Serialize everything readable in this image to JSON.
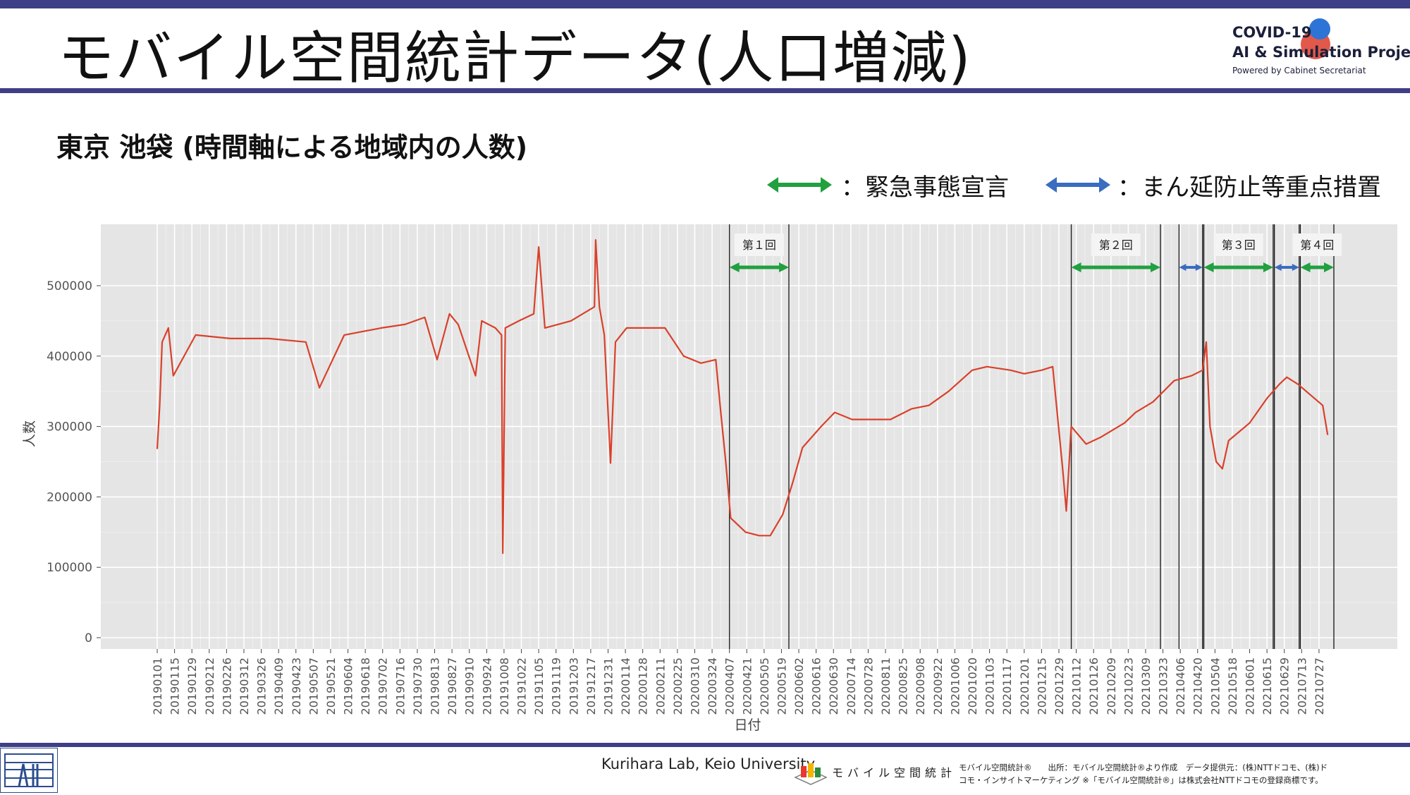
{
  "header": {
    "title": "モバイル空間統計データ(人口増減)",
    "logo_line1": "COVID-19",
    "logo_line2": "AI & Simulation Project",
    "logo_line3": "Powered by Cabinet Secretariat"
  },
  "subtitle": "東京 池袋 (時間軸による地域内の人数)",
  "legend": {
    "emergency_label": "：緊急事態宣言",
    "emergency_color": "#21a040",
    "priority_label": "：まん延防止等重点措置",
    "priority_color": "#3a6cc0"
  },
  "footer": {
    "credit": "Kurihara Lab, Keio University",
    "mobile_logo_text": "モバイル空間統計",
    "source_line1": "モバイル空間統計®　　出所：モバイル空間統計®より作成　データ提供元：(株)NTTドコモ、(株)ド",
    "source_line2": "コモ・インサイトマーケティング ※「モバイル空間統計®」は株式会社NTTドコモの登録商標です。"
  },
  "chart_data": {
    "type": "line",
    "xlabel": "日付",
    "ylabel": "人数",
    "ylim": [
      0,
      590000
    ],
    "yticks": [
      0,
      100000,
      200000,
      300000,
      400000,
      500000
    ],
    "xlim": [
      "2019-01-01",
      "2021-08-08"
    ],
    "xticks": [
      "20190101",
      "20190115",
      "20190129",
      "20190212",
      "20190226",
      "20190312",
      "20190326",
      "20190409",
      "20190423",
      "20190507",
      "20190521",
      "20190604",
      "20190618",
      "20190702",
      "20190716",
      "20190730",
      "20190813",
      "20190827",
      "20190910",
      "20190924",
      "20191008",
      "20191022",
      "20191105",
      "20191119",
      "20191203",
      "20191217",
      "20191231",
      "20200114",
      "20200128",
      "20200211",
      "20200225",
      "20200310",
      "20200324",
      "20200407",
      "20200421",
      "20200505",
      "20200519",
      "20200602",
      "20200616",
      "20200630",
      "20200714",
      "20200728",
      "20200811",
      "20200825",
      "20200908",
      "20200922",
      "20201006",
      "20201020",
      "20201103",
      "20201117",
      "20201201",
      "20201215",
      "20201229",
      "20210112",
      "20210126",
      "20210209",
      "20210223",
      "20210309",
      "20210323",
      "20210406",
      "20210420",
      "20210504",
      "20210518",
      "20210601",
      "20210615",
      "20210629",
      "20210713",
      "20210727"
    ],
    "line_color": "#d9412b",
    "grid": true,
    "background": "#e5e5e5",
    "series": [
      {
        "points": [
          [
            "2019-01-01",
            268000
          ],
          [
            "2019-01-03",
            330000
          ],
          [
            "2019-01-05",
            420000
          ],
          [
            "2019-01-10",
            440000
          ],
          [
            "2019-01-14",
            372000
          ],
          [
            "2019-02-01",
            430000
          ],
          [
            "2019-03-01",
            425000
          ],
          [
            "2019-04-01",
            425000
          ],
          [
            "2019-05-01",
            420000
          ],
          [
            "2019-05-12",
            355000
          ],
          [
            "2019-06-01",
            430000
          ],
          [
            "2019-07-01",
            440000
          ],
          [
            "2019-07-20",
            445000
          ],
          [
            "2019-08-05",
            455000
          ],
          [
            "2019-08-15",
            395000
          ],
          [
            "2019-08-25",
            460000
          ],
          [
            "2019-09-01",
            445000
          ],
          [
            "2019-09-15",
            372000
          ],
          [
            "2019-09-20",
            450000
          ],
          [
            "2019-10-01",
            440000
          ],
          [
            "2019-10-06",
            430000
          ],
          [
            "2019-10-07",
            120000
          ],
          [
            "2019-10-09",
            440000
          ],
          [
            "2019-10-20",
            450000
          ],
          [
            "2019-11-01",
            460000
          ],
          [
            "2019-11-05",
            555000
          ],
          [
            "2019-11-10",
            440000
          ],
          [
            "2019-12-01",
            450000
          ],
          [
            "2019-12-20",
            470000
          ],
          [
            "2019-12-21",
            565000
          ],
          [
            "2019-12-24",
            470000
          ],
          [
            "2019-12-28",
            430000
          ],
          [
            "2020-01-02",
            248000
          ],
          [
            "2020-01-06",
            420000
          ],
          [
            "2020-01-15",
            440000
          ],
          [
            "2020-02-01",
            440000
          ],
          [
            "2020-02-15",
            440000
          ],
          [
            "2020-03-01",
            400000
          ],
          [
            "2020-03-15",
            390000
          ],
          [
            "2020-03-27",
            395000
          ],
          [
            "2020-03-31",
            320000
          ],
          [
            "2020-04-04",
            250000
          ],
          [
            "2020-04-08",
            170000
          ],
          [
            "2020-04-20",
            150000
          ],
          [
            "2020-05-01",
            145000
          ],
          [
            "2020-05-10",
            145000
          ],
          [
            "2020-05-20",
            175000
          ],
          [
            "2020-05-28",
            220000
          ],
          [
            "2020-06-05",
            270000
          ],
          [
            "2020-06-20",
            300000
          ],
          [
            "2020-07-01",
            320000
          ],
          [
            "2020-07-15",
            310000
          ],
          [
            "2020-08-01",
            310000
          ],
          [
            "2020-08-15",
            310000
          ],
          [
            "2020-09-01",
            325000
          ],
          [
            "2020-09-15",
            330000
          ],
          [
            "2020-10-01",
            350000
          ],
          [
            "2020-10-20",
            380000
          ],
          [
            "2020-11-01",
            385000
          ],
          [
            "2020-11-20",
            380000
          ],
          [
            "2020-12-01",
            375000
          ],
          [
            "2020-12-15",
            380000
          ],
          [
            "2020-12-24",
            385000
          ],
          [
            "2021-01-01",
            240000
          ],
          [
            "2021-01-04",
            180000
          ],
          [
            "2021-01-08",
            300000
          ],
          [
            "2021-01-20",
            275000
          ],
          [
            "2021-02-01",
            285000
          ],
          [
            "2021-02-20",
            305000
          ],
          [
            "2021-03-01",
            320000
          ],
          [
            "2021-03-15",
            335000
          ],
          [
            "2021-04-01",
            365000
          ],
          [
            "2021-04-15",
            372000
          ],
          [
            "2021-04-24",
            380000
          ],
          [
            "2021-04-27",
            420000
          ],
          [
            "2021-04-30",
            300000
          ],
          [
            "2021-05-05",
            250000
          ],
          [
            "2021-05-10",
            240000
          ],
          [
            "2021-05-15",
            280000
          ],
          [
            "2021-06-01",
            305000
          ],
          [
            "2021-06-15",
            340000
          ],
          [
            "2021-06-25",
            360000
          ],
          [
            "2021-07-01",
            370000
          ],
          [
            "2021-07-10",
            360000
          ],
          [
            "2021-07-20",
            345000
          ],
          [
            "2021-07-30",
            330000
          ],
          [
            "2021-08-03",
            288000
          ]
        ]
      }
    ],
    "periods": [
      {
        "label": "第１回",
        "type": "emergency",
        "start": "2020-04-07",
        "end": "2020-05-25"
      },
      {
        "label": "第２回",
        "type": "emergency",
        "start": "2021-01-08",
        "end": "2021-03-21"
      },
      {
        "label": "",
        "type": "priority",
        "start": "2021-04-05",
        "end": "2021-04-24"
      },
      {
        "label": "第３回",
        "type": "emergency",
        "start": "2021-04-25",
        "end": "2021-06-20"
      },
      {
        "label": "",
        "type": "priority",
        "start": "2021-06-21",
        "end": "2021-07-11"
      },
      {
        "label": "第４回",
        "type": "emergency",
        "start": "2021-07-12",
        "end": "2021-08-08"
      }
    ]
  }
}
